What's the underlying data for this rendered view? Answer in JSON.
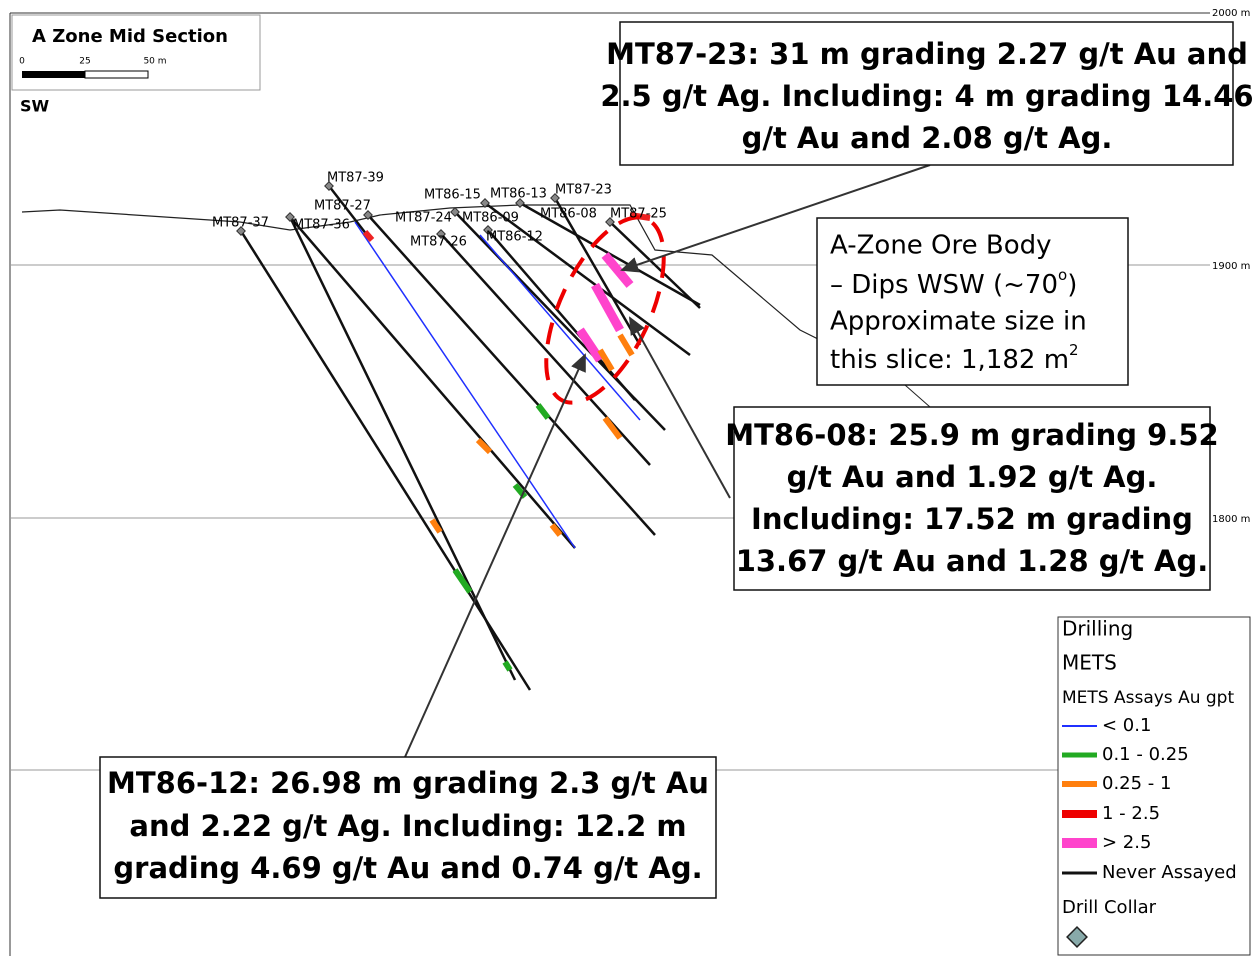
{
  "header": {
    "title": "A Zone Mid Section",
    "scale_labels": [
      "0",
      "25",
      "50 m"
    ],
    "direction": "SW"
  },
  "elevations": [
    "2000 m",
    "1900 m",
    "1800 m"
  ],
  "drill_holes": [
    "MT87-39",
    "MT87-27",
    "MT87-37",
    "MT87-36",
    "MT86-15",
    "MT86-13",
    "MT87-23",
    "MT87-24",
    "MT86-09",
    "MT86-08",
    "MT87-25",
    "MT87-26",
    "MT86-12"
  ],
  "callouts": {
    "mt87_23": [
      "MT87-23: 31 m grading 2.27 g/t Au and",
      "2.5 g/t Ag. Including: 4 m grading 14.46",
      "g/t Au and 2.08 g/t Ag."
    ],
    "ore_body": [
      "A-Zone Ore Body",
      [
        "– Dips WSW (~70",
        "o",
        ")"
      ],
      "Approximate size in",
      [
        "this slice: 1,182 m",
        "2"
      ]
    ],
    "mt86_08": [
      "MT86-08: 25.9 m grading 9.52",
      "g/t Au and 1.92 g/t Ag.",
      "Including: 17.52 m grading",
      "13.67 g/t Au and 1.28 g/t Ag."
    ],
    "mt86_12": [
      "MT86-12: 26.98 m grading 2.3 g/t Au",
      "and 2.22 g/t Ag. Including: 12.2 m",
      "grading 4.69 g/t Au and 0.74 g/t Ag."
    ]
  },
  "legend": {
    "heading": "Drilling",
    "group": "METS",
    "assay_title": "METS Assays Au gpt",
    "items": [
      "< 0.1",
      "0.1 - 0.25",
      "0.25 - 1",
      "1 - 2.5",
      "> 2.5",
      "Never Assayed"
    ],
    "collar": "Drill Collar"
  }
}
